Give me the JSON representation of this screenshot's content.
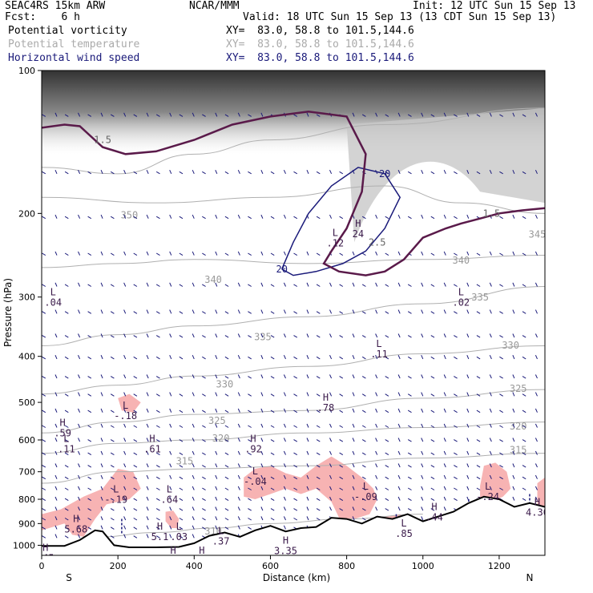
{
  "header": {
    "model": "SEAC4RS 15km ARW",
    "fcst": "Fcst:    6 h",
    "center": "NCAR/MMM",
    "init": "Init: 12 UTC Sun 15 Sep 13",
    "valid": "Valid: 18 UTC Sun 15 Sep 13 (13 CDT Sun 15 Sep 13)",
    "field1": "Potential vorticity",
    "field2": "Potential temperature",
    "field3": "Horizontal wind speed",
    "xy1": "XY=  83.0, 58.8 to 101.5,144.6",
    "xy2": "XY=  83.0, 58.8 to 101.5,144.6",
    "xy3": "XY=  83.0, 58.8 to 101.5,144.6"
  },
  "colors": {
    "pv_fill": "#f7b3b3",
    "pv_contour": "#5a1a4a",
    "theta": "#b0b0b0",
    "wind": "#1a1a7a",
    "terrain": "#000000"
  },
  "chart_data": {
    "type": "cross-section",
    "xlabel": "Distance (km)",
    "ylabel": "Pressure (hPa)",
    "x_ticks": [
      0,
      200,
      400,
      600,
      800,
      1000,
      1200
    ],
    "y_ticks": [
      100,
      200,
      300,
      400,
      500,
      600,
      700,
      800,
      900,
      1000
    ],
    "xlim": [
      0,
      1320
    ],
    "ylim": [
      1050,
      100
    ],
    "y_scale": "log",
    "x_end_labels": {
      "left": "S",
      "right": "N"
    },
    "theta_contours": [
      {
        "label": "350",
        "points": [
          [
            0,
            160
          ],
          [
            200,
            165
          ],
          [
            400,
            150
          ],
          [
            600,
            140
          ],
          [
            900,
            130
          ],
          [
            1320,
            120
          ]
        ]
      },
      {
        "label": "345",
        "points": [
          [
            0,
            185
          ],
          [
            300,
            190
          ],
          [
            600,
            185
          ],
          [
            900,
            175
          ],
          [
            1100,
            190
          ],
          [
            1320,
            200
          ]
        ]
      },
      {
        "label": "340",
        "points": [
          [
            0,
            260
          ],
          [
            200,
            255
          ],
          [
            400,
            250
          ],
          [
            700,
            255
          ],
          [
            1000,
            250
          ],
          [
            1320,
            245
          ]
        ]
      },
      {
        "label": "335",
        "points": [
          [
            0,
            380
          ],
          [
            200,
            360
          ],
          [
            400,
            345
          ],
          [
            700,
            330
          ],
          [
            1000,
            310
          ],
          [
            1320,
            285
          ]
        ]
      },
      {
        "label": "330",
        "points": [
          [
            0,
            480
          ],
          [
            200,
            460
          ],
          [
            400,
            440
          ],
          [
            700,
            420
          ],
          [
            1000,
            395
          ],
          [
            1320,
            380
          ]
        ]
      },
      {
        "label": "325",
        "points": [
          [
            0,
            580
          ],
          [
            200,
            550
          ],
          [
            400,
            530
          ],
          [
            700,
            520
          ],
          [
            1000,
            490
          ],
          [
            1320,
            470
          ]
        ]
      },
      {
        "label": "320",
        "points": [
          [
            0,
            640
          ],
          [
            200,
            610
          ],
          [
            400,
            600
          ],
          [
            700,
            580
          ],
          [
            1000,
            565
          ],
          [
            1320,
            550
          ]
        ]
      },
      {
        "label": "315",
        "points": [
          [
            0,
            740
          ],
          [
            200,
            700
          ],
          [
            400,
            690
          ],
          [
            700,
            680
          ],
          [
            1000,
            655
          ],
          [
            1320,
            640
          ]
        ]
      },
      {
        "label": "310",
        "points": [
          [
            150,
            960
          ],
          [
            300,
            940
          ],
          [
            450,
            920
          ],
          [
            600,
            900
          ],
          [
            800,
            880
          ],
          [
            1000,
            860
          ]
        ]
      }
    ],
    "theta_labels": [
      {
        "text": "350",
        "x": 230,
        "y": 205
      },
      {
        "text": "345",
        "x": 1300,
        "y": 225
      },
      {
        "text": "340",
        "x": 450,
        "y": 280
      },
      {
        "text": "340",
        "x": 1100,
        "y": 255
      },
      {
        "text": "335",
        "x": 580,
        "y": 370
      },
      {
        "text": "335",
        "x": 1150,
        "y": 305
      },
      {
        "text": "330",
        "x": 480,
        "y": 465
      },
      {
        "text": "330",
        "x": 1230,
        "y": 385
      },
      {
        "text": "325",
        "x": 460,
        "y": 555
      },
      {
        "text": "325",
        "x": 1250,
        "y": 475
      },
      {
        "text": "320",
        "x": 470,
        "y": 605
      },
      {
        "text": "320",
        "x": 1250,
        "y": 570
      },
      {
        "text": "315",
        "x": 375,
        "y": 675
      },
      {
        "text": "315",
        "x": 1250,
        "y": 640
      },
      {
        "text": "310",
        "x": 450,
        "y": 950
      }
    ],
    "pv_labels": [
      {
        "text": "1.5",
        "x": 160,
        "y": 140
      },
      {
        "text": "1.5",
        "x": 1180,
        "y": 200
      },
      {
        "text": "2.5",
        "x": 880,
        "y": 230
      }
    ],
    "pv_extrema": [
      {
        "type": "L",
        "value": ".04",
        "x": 30,
        "y": 300
      },
      {
        "type": "L",
        "value": ".12",
        "x": 770,
        "y": 225
      },
      {
        "type": "H",
        "value": "24",
        "x": 830,
        "y": 215
      },
      {
        "type": "L",
        "value": ".02",
        "x": 1100,
        "y": 300
      },
      {
        "type": "L",
        "value": ".11",
        "x": 885,
        "y": 385
      },
      {
        "type": "H",
        "value": ".78",
        "x": 745,
        "y": 500
      },
      {
        "type": "L",
        "value": "-.18",
        "x": 220,
        "y": 520
      },
      {
        "type": "H",
        "value": ".59",
        "x": 55,
        "y": 565
      },
      {
        "type": "L",
        "value": ".11",
        "x": 65,
        "y": 610
      },
      {
        "type": "H",
        "value": ".61",
        "x": 290,
        "y": 610
      },
      {
        "type": "H",
        "value": ".92",
        "x": 555,
        "y": 610
      },
      {
        "type": "L",
        "value": "-.04",
        "x": 560,
        "y": 715
      },
      {
        "type": "L",
        "value": "-.19",
        "x": 195,
        "y": 780
      },
      {
        "type": "L",
        "value": ".64",
        "x": 335,
        "y": 780
      },
      {
        "type": "L",
        "value": "-.09",
        "x": 850,
        "y": 770
      },
      {
        "type": "L",
        "value": "-.24",
        "x": 1170,
        "y": 770
      },
      {
        "type": "H",
        "value": ".44",
        "x": 1030,
        "y": 850
      },
      {
        "type": "H",
        "value": "4.30",
        "x": 1300,
        "y": 830
      },
      {
        "type": "H",
        "value": "5.68",
        "x": 90,
        "y": 900
      },
      {
        "type": "H",
        "value": "5.1",
        "x": 310,
        "y": 935
      },
      {
        "type": "L",
        "value": ".03",
        "x": 360,
        "y": 935
      },
      {
        "type": "L",
        "value": ".37",
        "x": 470,
        "y": 955
      },
      {
        "type": "L",
        "value": ".85",
        "x": 950,
        "y": 920
      },
      {
        "type": "H",
        "value": "3.35",
        "x": 640,
        "y": 1000
      },
      {
        "type": "H",
        "value": "2.26",
        "x": 345,
        "y": 1050
      },
      {
        "type": "H",
        "value": "4.10",
        "x": 420,
        "y": 1050
      },
      {
        "type": "H",
        "value": ".45",
        "x": 10,
        "y": 1035
      }
    ],
    "wind_labels": [
      {
        "text": "20",
        "x": 900,
        "y": 165
      },
      {
        "text": "20",
        "x": 630,
        "y": 262
      }
    ],
    "terrain": [
      [
        0,
        1003
      ],
      [
        60,
        1003
      ],
      [
        100,
        975
      ],
      [
        140,
        930
      ],
      [
        160,
        935
      ],
      [
        190,
        1000
      ],
      [
        230,
        1010
      ],
      [
        300,
        1010
      ],
      [
        360,
        1008
      ],
      [
        400,
        990
      ],
      [
        440,
        955
      ],
      [
        480,
        940
      ],
      [
        520,
        960
      ],
      [
        560,
        930
      ],
      [
        600,
        910
      ],
      [
        640,
        935
      ],
      [
        680,
        920
      ],
      [
        720,
        915
      ],
      [
        760,
        875
      ],
      [
        800,
        880
      ],
      [
        840,
        900
      ],
      [
        880,
        870
      ],
      [
        920,
        880
      ],
      [
        960,
        860
      ],
      [
        1000,
        890
      ],
      [
        1040,
        870
      ],
      [
        1080,
        850
      ],
      [
        1120,
        815
      ],
      [
        1160,
        790
      ],
      [
        1200,
        800
      ],
      [
        1240,
        830
      ],
      [
        1280,
        815
      ],
      [
        1320,
        830
      ]
    ],
    "x_max_km": 1320
  }
}
